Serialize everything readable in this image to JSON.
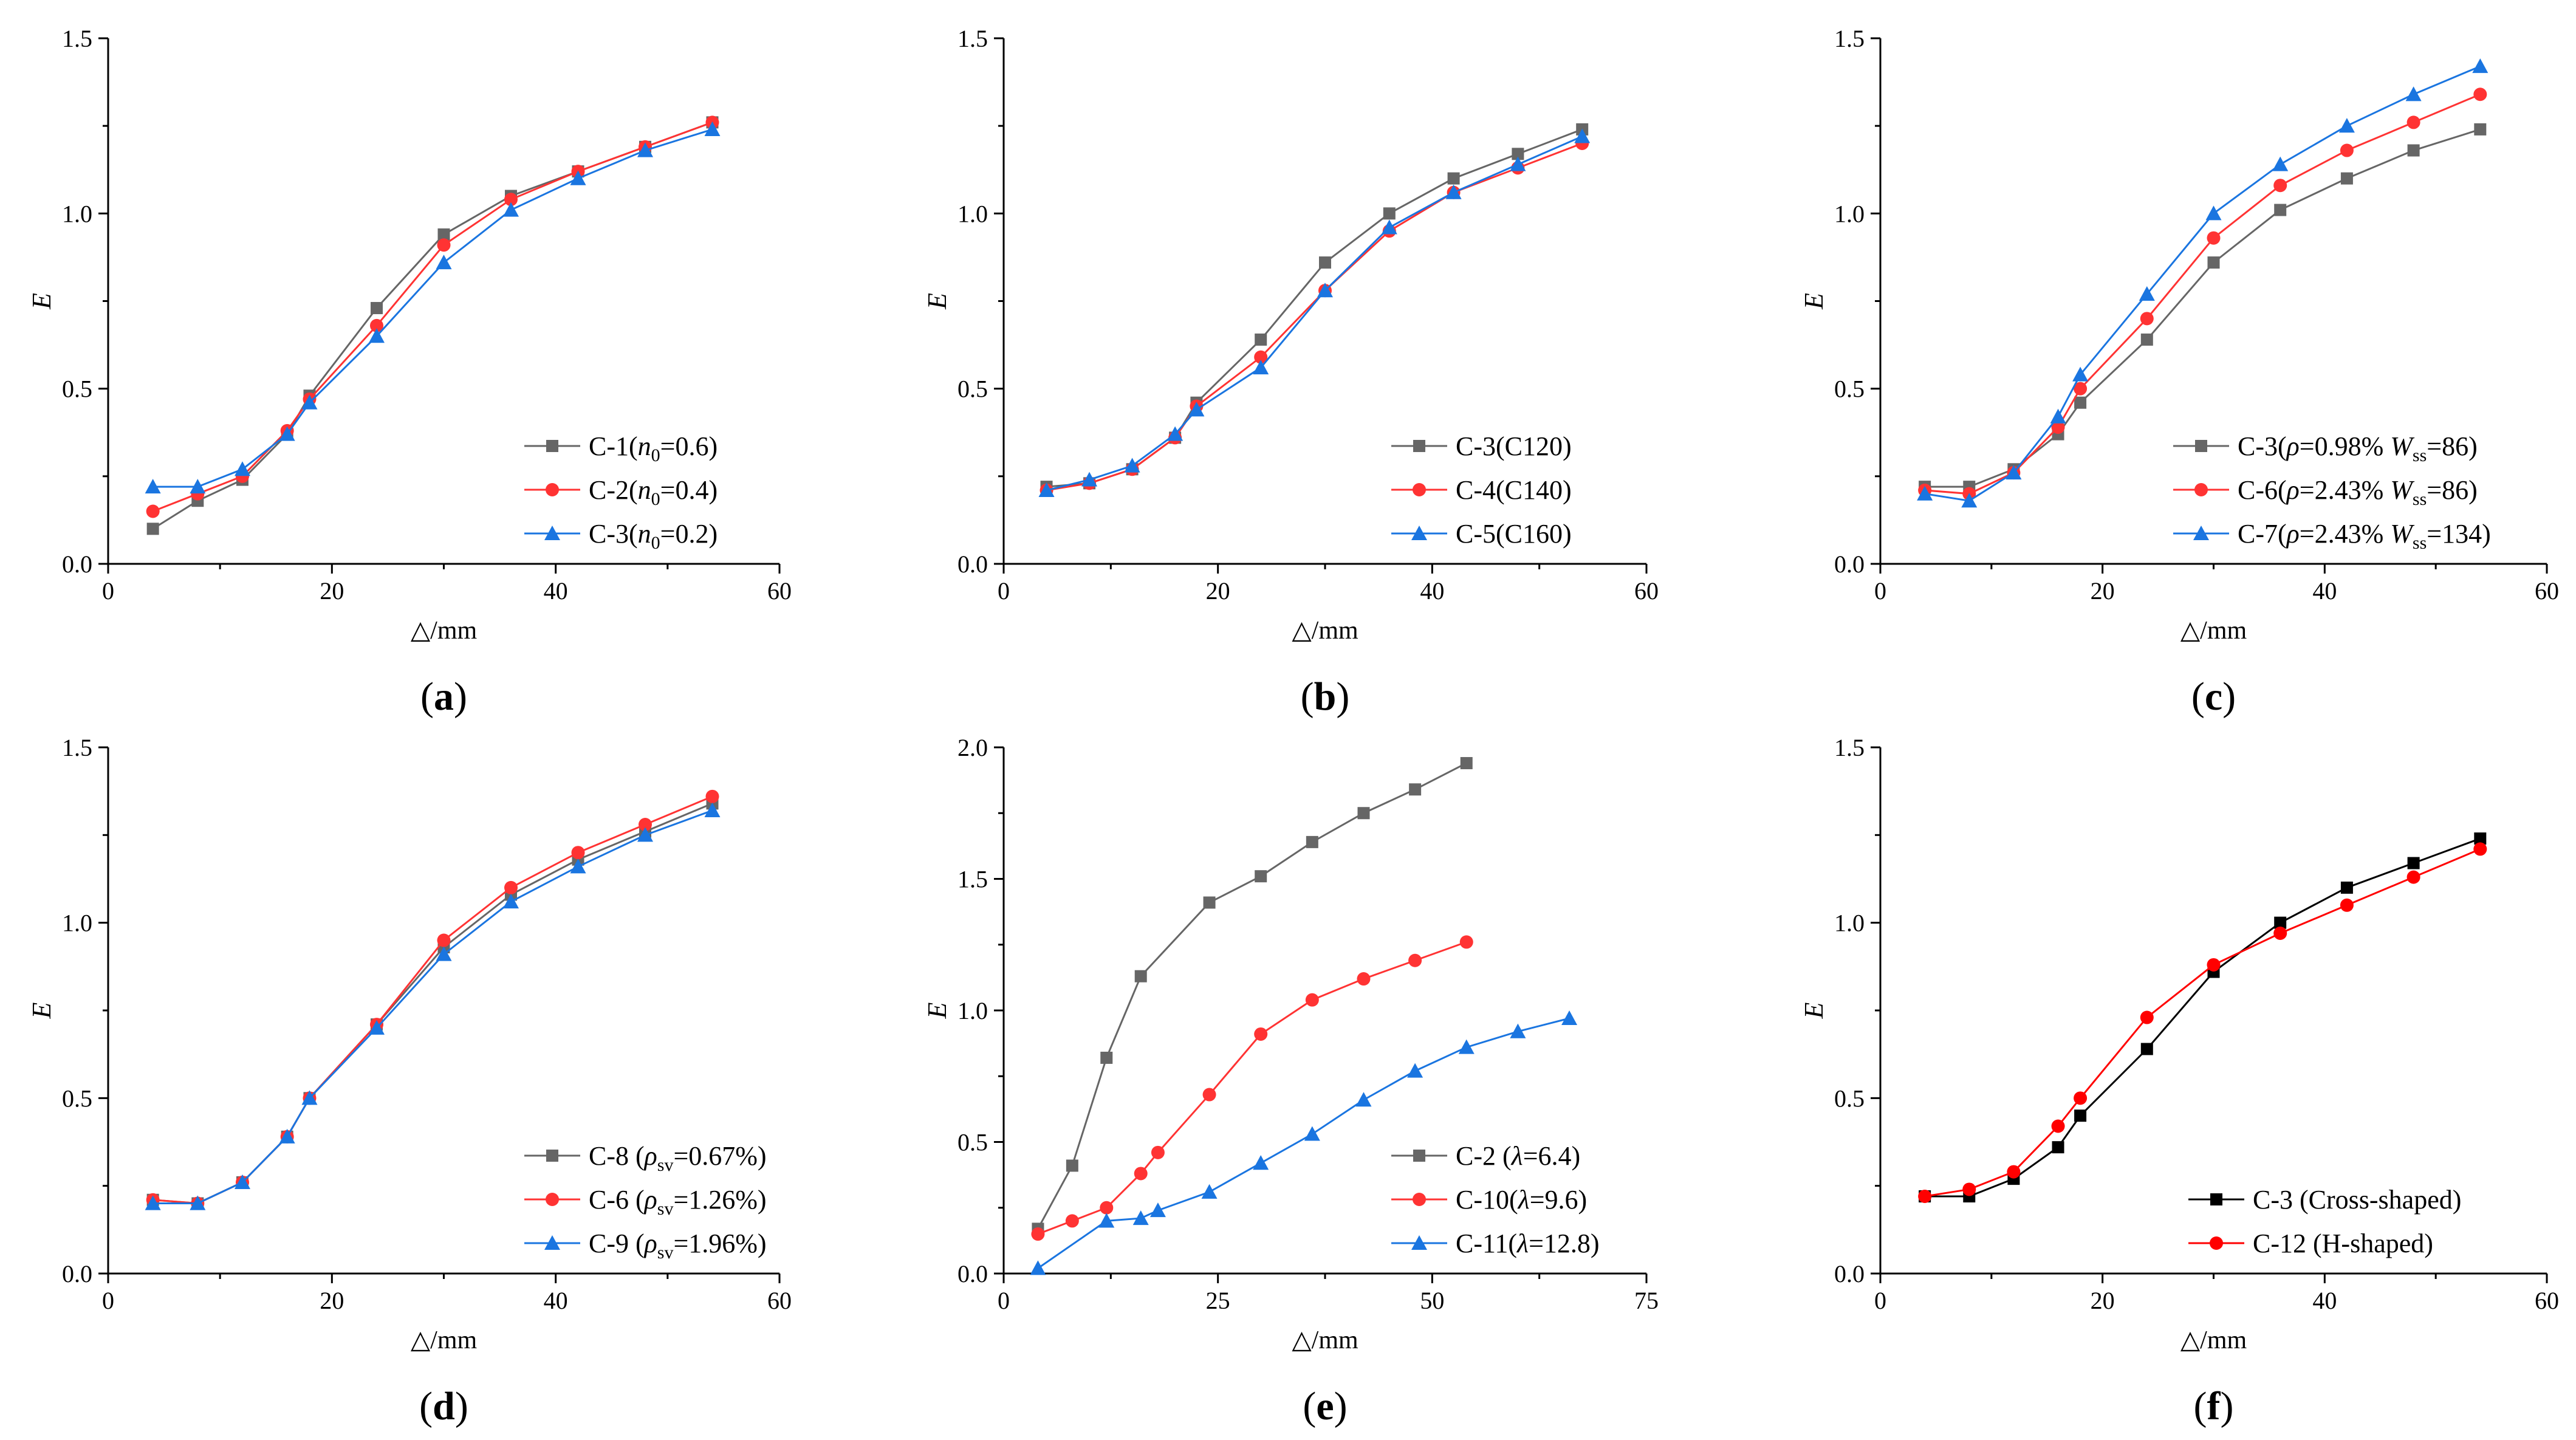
{
  "figure": {
    "description_free": true
  },
  "chart_data": [
    {
      "type": "line",
      "panel_label": "a",
      "xlabel": "△/mm",
      "ylabel": "E",
      "xlim": [
        0,
        60
      ],
      "ylim": [
        0,
        1.5
      ],
      "xticks": [
        "0",
        "20",
        "40",
        "60"
      ],
      "yticks": [
        "0.0",
        "0.5",
        "1.0",
        "1.5"
      ],
      "legend_position": "bottom-right",
      "series": [
        {
          "name": "C-1",
          "legend_parts": [
            [
              "C-1(",
              ""
            ],
            [
              "n",
              "i"
            ],
            [
              "0",
              "sub"
            ],
            [
              "=0.6)",
              ""
            ]
          ],
          "color": "#666666",
          "marker": "square",
          "x": [
            4,
            8,
            12,
            16,
            18,
            24,
            30,
            36,
            42,
            48,
            54
          ],
          "y": [
            0.1,
            0.18,
            0.24,
            0.37,
            0.48,
            0.73,
            0.94,
            1.05,
            1.12,
            1.19,
            1.26
          ]
        },
        {
          "name": "C-2",
          "legend_parts": [
            [
              "C-2(",
              ""
            ],
            [
              "n",
              "i"
            ],
            [
              "0",
              "sub"
            ],
            [
              "=0.4)",
              ""
            ]
          ],
          "color": "#ff3333",
          "marker": "circle",
          "x": [
            4,
            8,
            12,
            16,
            18,
            24,
            30,
            36,
            42,
            48,
            54
          ],
          "y": [
            0.15,
            0.2,
            0.25,
            0.38,
            0.47,
            0.68,
            0.91,
            1.04,
            1.12,
            1.19,
            1.26
          ]
        },
        {
          "name": "C-3",
          "legend_parts": [
            [
              "C-3(",
              ""
            ],
            [
              "n",
              "i"
            ],
            [
              "0",
              "sub"
            ],
            [
              "=0.2)",
              ""
            ]
          ],
          "color": "#1a75e0",
          "marker": "triangle",
          "x": [
            4,
            8,
            12,
            16,
            18,
            24,
            30,
            36,
            42,
            48,
            54
          ],
          "y": [
            0.22,
            0.22,
            0.27,
            0.37,
            0.46,
            0.65,
            0.86,
            1.01,
            1.1,
            1.18,
            1.24
          ]
        }
      ]
    },
    {
      "type": "line",
      "panel_label": "b",
      "xlabel": "△/mm",
      "ylabel": "E",
      "xlim": [
        0,
        60
      ],
      "ylim": [
        0,
        1.5
      ],
      "xticks": [
        "0",
        "20",
        "40",
        "60"
      ],
      "yticks": [
        "0.0",
        "0.5",
        "1.0",
        "1.5"
      ],
      "legend_position": "bottom-right",
      "series": [
        {
          "name": "C-3(C120)",
          "legend_parts": [
            [
              "C-3(C120)",
              ""
            ]
          ],
          "color": "#666666",
          "marker": "square",
          "x": [
            4,
            8,
            12,
            16,
            18,
            24,
            30,
            36,
            42,
            48,
            54
          ],
          "y": [
            0.22,
            0.23,
            0.27,
            0.36,
            0.46,
            0.64,
            0.86,
            1.0,
            1.1,
            1.17,
            1.24
          ]
        },
        {
          "name": "C-4(C140)",
          "legend_parts": [
            [
              "C-4(C140)",
              ""
            ]
          ],
          "color": "#ff3333",
          "marker": "circle",
          "x": [
            4,
            8,
            12,
            16,
            18,
            24,
            30,
            36,
            42,
            48,
            54
          ],
          "y": [
            0.21,
            0.23,
            0.27,
            0.36,
            0.45,
            0.59,
            0.78,
            0.95,
            1.06,
            1.13,
            1.2
          ]
        },
        {
          "name": "C-5(C160)",
          "legend_parts": [
            [
              "C-5(C160)",
              ""
            ]
          ],
          "color": "#1a75e0",
          "marker": "triangle",
          "x": [
            4,
            8,
            12,
            16,
            18,
            24,
            30,
            36,
            42,
            48,
            54
          ],
          "y": [
            0.21,
            0.24,
            0.28,
            0.37,
            0.44,
            0.56,
            0.78,
            0.96,
            1.06,
            1.14,
            1.22
          ]
        }
      ]
    },
    {
      "type": "line",
      "panel_label": "c",
      "xlabel": "△/mm",
      "ylabel": "E",
      "xlim": [
        0,
        60
      ],
      "ylim": [
        0,
        1.5
      ],
      "xticks": [
        "0",
        "20",
        "40",
        "60"
      ],
      "yticks": [
        "0.0",
        "0.5",
        "1.0",
        "1.5"
      ],
      "legend_position": "bottom-right",
      "series": [
        {
          "name": "C-3",
          "legend_parts": [
            [
              "C-3(",
              ""
            ],
            [
              "ρ",
              "i"
            ],
            [
              "=0.98% ",
              ""
            ],
            [
              "W",
              "i"
            ],
            [
              "ss",
              "sub"
            ],
            [
              "=86)",
              ""
            ]
          ],
          "color": "#666666",
          "marker": "square",
          "x": [
            4,
            8,
            12,
            16,
            18,
            24,
            30,
            36,
            42,
            48,
            54
          ],
          "y": [
            0.22,
            0.22,
            0.27,
            0.37,
            0.46,
            0.64,
            0.86,
            1.01,
            1.1,
            1.18,
            1.24
          ]
        },
        {
          "name": "C-6",
          "legend_parts": [
            [
              "C-6(",
              ""
            ],
            [
              "ρ",
              "i"
            ],
            [
              "=2.43% ",
              ""
            ],
            [
              "W",
              "i"
            ],
            [
              "ss",
              "sub"
            ],
            [
              "=86)",
              ""
            ]
          ],
          "color": "#ff3333",
          "marker": "circle",
          "x": [
            4,
            8,
            12,
            16,
            18,
            24,
            30,
            36,
            42,
            48,
            54
          ],
          "y": [
            0.21,
            0.2,
            0.26,
            0.39,
            0.5,
            0.7,
            0.93,
            1.08,
            1.18,
            1.26,
            1.34
          ]
        },
        {
          "name": "C-7",
          "legend_parts": [
            [
              "C-7(",
              ""
            ],
            [
              "ρ",
              "i"
            ],
            [
              "=2.43% ",
              ""
            ],
            [
              "W",
              "i"
            ],
            [
              "ss",
              "sub"
            ],
            [
              "=134)",
              ""
            ]
          ],
          "color": "#1a75e0",
          "marker": "triangle",
          "x": [
            4,
            8,
            12,
            16,
            18,
            24,
            30,
            36,
            42,
            48,
            54
          ],
          "y": [
            0.2,
            0.18,
            0.26,
            0.42,
            0.54,
            0.77,
            1.0,
            1.14,
            1.25,
            1.34,
            1.42
          ]
        }
      ]
    },
    {
      "type": "line",
      "panel_label": "d",
      "xlabel": "△/mm",
      "ylabel": "E",
      "xlim": [
        0,
        60
      ],
      "ylim": [
        0,
        1.5
      ],
      "xticks": [
        "0",
        "20",
        "40",
        "60"
      ],
      "yticks": [
        "0.0",
        "0.5",
        "1.0",
        "1.5"
      ],
      "legend_position": "bottom-right",
      "series": [
        {
          "name": "C-8",
          "legend_parts": [
            [
              "C-8 (",
              ""
            ],
            [
              "ρ",
              "i"
            ],
            [
              "sv",
              "sub"
            ],
            [
              "=0.67%)",
              ""
            ]
          ],
          "color": "#666666",
          "marker": "square",
          "x": [
            4,
            8,
            12,
            16,
            18,
            24,
            30,
            36,
            42,
            48,
            54
          ],
          "y": [
            0.21,
            0.2,
            0.26,
            0.39,
            0.5,
            0.71,
            0.93,
            1.08,
            1.18,
            1.26,
            1.34
          ]
        },
        {
          "name": "C-6",
          "legend_parts": [
            [
              "C-6 (",
              ""
            ],
            [
              "ρ",
              "i"
            ],
            [
              "sv",
              "sub"
            ],
            [
              "=1.26%)",
              ""
            ]
          ],
          "color": "#ff3333",
          "marker": "circle",
          "x": [
            4,
            8,
            12,
            16,
            18,
            24,
            30,
            36,
            42,
            48,
            54
          ],
          "y": [
            0.21,
            0.2,
            0.26,
            0.39,
            0.5,
            0.71,
            0.95,
            1.1,
            1.2,
            1.28,
            1.36
          ]
        },
        {
          "name": "C-9",
          "legend_parts": [
            [
              "C-9 (",
              ""
            ],
            [
              "ρ",
              "i"
            ],
            [
              "sv",
              "sub"
            ],
            [
              "=1.96%)",
              ""
            ]
          ],
          "color": "#1a75e0",
          "marker": "triangle",
          "x": [
            4,
            8,
            12,
            16,
            18,
            24,
            30,
            36,
            42,
            48,
            54
          ],
          "y": [
            0.2,
            0.2,
            0.26,
            0.39,
            0.5,
            0.7,
            0.91,
            1.06,
            1.16,
            1.25,
            1.32
          ]
        }
      ]
    },
    {
      "type": "line",
      "panel_label": "e",
      "xlabel": "△/mm",
      "ylabel": "E",
      "xlim": [
        0,
        75
      ],
      "ylim": [
        0,
        2.0
      ],
      "xticks": [
        "0",
        "25",
        "50",
        "75"
      ],
      "yticks": [
        "0.0",
        "0.5",
        "1.0",
        "1.5",
        "2.0"
      ],
      "legend_position": "bottom-right",
      "series": [
        {
          "name": "C-2",
          "legend_parts": [
            [
              "C-2  (",
              ""
            ],
            [
              "λ",
              "i"
            ],
            [
              "=6.4)",
              ""
            ]
          ],
          "color": "#666666",
          "marker": "square",
          "x": [
            4,
            8,
            12,
            16,
            24,
            30,
            36,
            42,
            48,
            54
          ],
          "y": [
            0.17,
            0.41,
            0.82,
            1.13,
            1.41,
            1.51,
            1.64,
            1.75,
            1.84,
            1.94
          ]
        },
        {
          "name": "C-10",
          "legend_parts": [
            [
              "C-10(",
              ""
            ],
            [
              "λ",
              "i"
            ],
            [
              "=9.6)",
              ""
            ]
          ],
          "color": "#ff3333",
          "marker": "circle",
          "x": [
            4,
            8,
            12,
            16,
            18,
            24,
            30,
            36,
            42,
            48,
            54
          ],
          "y": [
            0.15,
            0.2,
            0.25,
            0.38,
            0.46,
            0.68,
            0.91,
            1.04,
            1.12,
            1.19,
            1.26
          ]
        },
        {
          "name": "C-11",
          "legend_parts": [
            [
              "C-11(",
              ""
            ],
            [
              "λ",
              "i"
            ],
            [
              "=12.8)",
              ""
            ]
          ],
          "color": "#1a75e0",
          "marker": "triangle",
          "x": [
            4,
            12,
            16,
            18,
            24,
            30,
            36,
            42,
            48,
            54,
            60,
            66
          ],
          "y": [
            0.02,
            0.2,
            0.21,
            0.24,
            0.31,
            0.42,
            0.53,
            0.66,
            0.77,
            0.86,
            0.92,
            0.97
          ]
        }
      ]
    },
    {
      "type": "line",
      "panel_label": "f",
      "xlabel": "△/mm",
      "ylabel": "E",
      "xlim": [
        0,
        60
      ],
      "ylim": [
        0,
        1.5
      ],
      "xticks": [
        "0",
        "20",
        "40",
        "60"
      ],
      "yticks": [
        "0.0",
        "0.5",
        "1.0",
        "1.5"
      ],
      "legend_position": "bottom-right",
      "series": [
        {
          "name": "C-3",
          "legend_parts": [
            [
              "C-3   (Cross-shaped)",
              ""
            ]
          ],
          "color": "#000000",
          "marker": "square",
          "x": [
            4,
            8,
            12,
            16,
            18,
            24,
            30,
            36,
            42,
            48,
            54
          ],
          "y": [
            0.22,
            0.22,
            0.27,
            0.36,
            0.45,
            0.64,
            0.86,
            1.0,
            1.1,
            1.17,
            1.24
          ]
        },
        {
          "name": "C-12",
          "legend_parts": [
            [
              "C-12 (H-shaped)",
              ""
            ]
          ],
          "color": "#ff0000",
          "marker": "circle",
          "x": [
            4,
            8,
            12,
            16,
            18,
            24,
            30,
            36,
            42,
            48,
            54
          ],
          "y": [
            0.22,
            0.24,
            0.29,
            0.42,
            0.5,
            0.73,
            0.88,
            0.97,
            1.05,
            1.13,
            1.21
          ]
        }
      ]
    }
  ]
}
